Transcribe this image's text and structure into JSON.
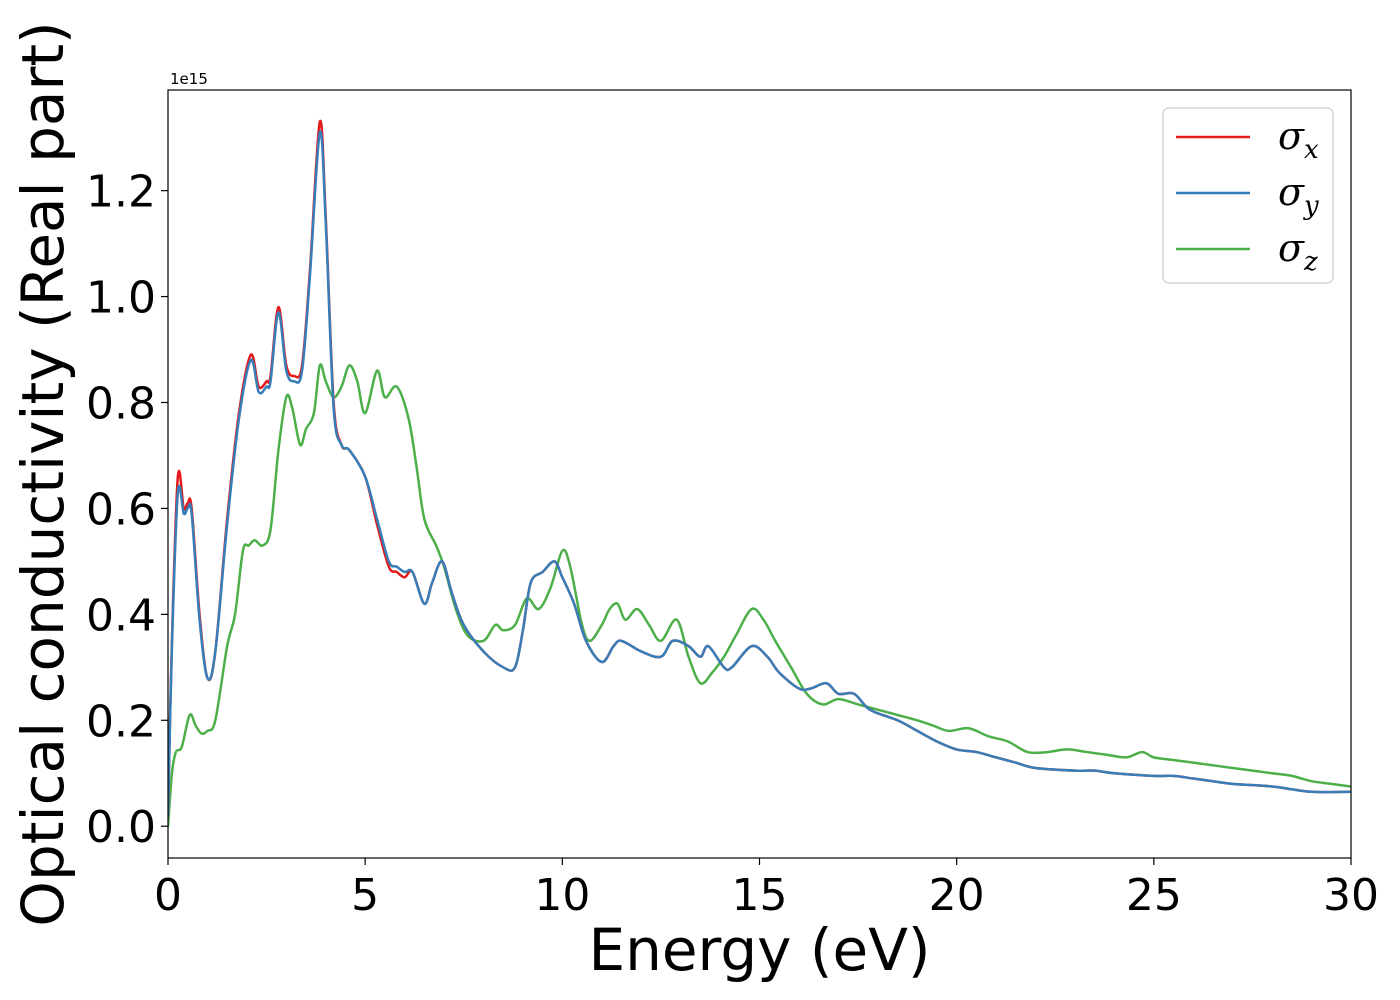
{
  "chart_data": {
    "type": "line",
    "title": "",
    "xlabel": "Energy (eV)",
    "ylabel": "Optical conductivity (Real part)",
    "y_offset_label": "1e15",
    "xlim": [
      0,
      30
    ],
    "ylim": [
      -0.06,
      1.39
    ],
    "x_ticks": [
      0,
      5,
      10,
      15,
      20,
      25,
      30
    ],
    "x_tick_labels": [
      "0",
      "5",
      "10",
      "15",
      "20",
      "25",
      "30"
    ],
    "y_ticks": [
      0.0,
      0.2,
      0.4,
      0.6,
      0.8,
      1.0,
      1.2
    ],
    "y_tick_labels": [
      "0.0",
      "0.2",
      "0.4",
      "0.6",
      "0.8",
      "1.0",
      "1.2"
    ],
    "grid": false,
    "legend_position": "top-right",
    "series": [
      {
        "name": "σx",
        "symbol": "σ",
        "subscript": "x",
        "color": "#e41a1c",
        "points": [
          [
            0,
            0.02
          ],
          [
            0.1,
            0.35
          ],
          [
            0.25,
            0.66
          ],
          [
            0.4,
            0.6
          ],
          [
            0.5,
            0.61
          ],
          [
            0.6,
            0.6
          ],
          [
            0.8,
            0.4
          ],
          [
            1.0,
            0.28
          ],
          [
            1.2,
            0.33
          ],
          [
            1.5,
            0.58
          ],
          [
            1.8,
            0.78
          ],
          [
            2.1,
            0.89
          ],
          [
            2.3,
            0.83
          ],
          [
            2.5,
            0.84
          ],
          [
            2.6,
            0.85
          ],
          [
            2.8,
            0.98
          ],
          [
            3.0,
            0.87
          ],
          [
            3.2,
            0.85
          ],
          [
            3.4,
            0.87
          ],
          [
            3.6,
            1.05
          ],
          [
            3.85,
            1.33
          ],
          [
            4.0,
            1.15
          ],
          [
            4.2,
            0.8
          ],
          [
            4.4,
            0.72
          ],
          [
            4.6,
            0.71
          ],
          [
            5.0,
            0.66
          ],
          [
            5.3,
            0.57
          ],
          [
            5.6,
            0.49
          ],
          [
            5.8,
            0.48
          ],
          [
            6.0,
            0.47
          ],
          [
            6.2,
            0.48
          ],
          [
            6.5,
            0.42
          ],
          [
            6.7,
            0.46
          ],
          [
            6.95,
            0.5
          ],
          [
            7.2,
            0.44
          ],
          [
            7.5,
            0.38
          ],
          [
            8.0,
            0.33
          ],
          [
            8.5,
            0.3
          ],
          [
            8.8,
            0.3
          ],
          [
            9.0,
            0.37
          ],
          [
            9.2,
            0.46
          ],
          [
            9.5,
            0.48
          ],
          [
            9.8,
            0.5
          ],
          [
            10.0,
            0.47
          ],
          [
            10.3,
            0.42
          ],
          [
            10.6,
            0.35
          ],
          [
            11.0,
            0.31
          ],
          [
            11.3,
            0.34
          ],
          [
            11.5,
            0.35
          ],
          [
            12.0,
            0.33
          ],
          [
            12.5,
            0.32
          ],
          [
            12.8,
            0.35
          ],
          [
            13.2,
            0.34
          ],
          [
            13.5,
            0.32
          ],
          [
            13.7,
            0.34
          ],
          [
            14.1,
            0.3
          ],
          [
            14.3,
            0.3
          ],
          [
            14.8,
            0.34
          ],
          [
            15.2,
            0.32
          ],
          [
            15.5,
            0.29
          ],
          [
            16.0,
            0.26
          ],
          [
            16.3,
            0.26
          ],
          [
            16.7,
            0.27
          ],
          [
            17.0,
            0.25
          ],
          [
            17.4,
            0.25
          ],
          [
            17.8,
            0.22
          ],
          [
            18.5,
            0.2
          ],
          [
            19.0,
            0.18
          ],
          [
            19.5,
            0.16
          ],
          [
            20.0,
            0.145
          ],
          [
            20.5,
            0.14
          ],
          [
            21.0,
            0.13
          ],
          [
            21.5,
            0.12
          ],
          [
            22.0,
            0.11
          ],
          [
            23.0,
            0.105
          ],
          [
            23.5,
            0.105
          ],
          [
            24.0,
            0.1
          ],
          [
            25.0,
            0.095
          ],
          [
            25.5,
            0.095
          ],
          [
            26.0,
            0.09
          ],
          [
            26.5,
            0.085
          ],
          [
            27.0,
            0.08
          ],
          [
            28.0,
            0.075
          ],
          [
            29.0,
            0.065
          ],
          [
            30.0,
            0.065
          ]
        ]
      },
      {
        "name": "σy",
        "symbol": "σ",
        "subscript": "y",
        "color": "#377eb8",
        "points": [
          [
            0,
            0.02
          ],
          [
            0.1,
            0.34
          ],
          [
            0.25,
            0.63
          ],
          [
            0.4,
            0.59
          ],
          [
            0.5,
            0.6
          ],
          [
            0.6,
            0.59
          ],
          [
            0.8,
            0.39
          ],
          [
            1.0,
            0.28
          ],
          [
            1.2,
            0.33
          ],
          [
            1.5,
            0.57
          ],
          [
            1.8,
            0.77
          ],
          [
            2.1,
            0.88
          ],
          [
            2.3,
            0.82
          ],
          [
            2.5,
            0.83
          ],
          [
            2.6,
            0.84
          ],
          [
            2.8,
            0.97
          ],
          [
            3.0,
            0.86
          ],
          [
            3.2,
            0.84
          ],
          [
            3.4,
            0.86
          ],
          [
            3.6,
            1.04
          ],
          [
            3.85,
            1.31
          ],
          [
            4.0,
            1.14
          ],
          [
            4.2,
            0.79
          ],
          [
            4.4,
            0.72
          ],
          [
            4.6,
            0.71
          ],
          [
            5.0,
            0.66
          ],
          [
            5.3,
            0.58
          ],
          [
            5.6,
            0.5
          ],
          [
            5.8,
            0.49
          ],
          [
            6.0,
            0.48
          ],
          [
            6.2,
            0.48
          ],
          [
            6.5,
            0.42
          ],
          [
            6.7,
            0.46
          ],
          [
            6.95,
            0.5
          ],
          [
            7.2,
            0.44
          ],
          [
            7.5,
            0.38
          ],
          [
            8.0,
            0.33
          ],
          [
            8.5,
            0.3
          ],
          [
            8.8,
            0.3
          ],
          [
            9.0,
            0.37
          ],
          [
            9.2,
            0.46
          ],
          [
            9.5,
            0.48
          ],
          [
            9.8,
            0.5
          ],
          [
            10.0,
            0.47
          ],
          [
            10.3,
            0.42
          ],
          [
            10.6,
            0.35
          ],
          [
            11.0,
            0.31
          ],
          [
            11.3,
            0.34
          ],
          [
            11.5,
            0.35
          ],
          [
            12.0,
            0.33
          ],
          [
            12.5,
            0.32
          ],
          [
            12.8,
            0.35
          ],
          [
            13.2,
            0.34
          ],
          [
            13.5,
            0.32
          ],
          [
            13.7,
            0.34
          ],
          [
            14.1,
            0.3
          ],
          [
            14.3,
            0.3
          ],
          [
            14.8,
            0.34
          ],
          [
            15.2,
            0.32
          ],
          [
            15.5,
            0.29
          ],
          [
            16.0,
            0.26
          ],
          [
            16.3,
            0.26
          ],
          [
            16.7,
            0.27
          ],
          [
            17.0,
            0.25
          ],
          [
            17.4,
            0.25
          ],
          [
            17.8,
            0.22
          ],
          [
            18.5,
            0.2
          ],
          [
            19.0,
            0.18
          ],
          [
            19.5,
            0.16
          ],
          [
            20.0,
            0.145
          ],
          [
            20.5,
            0.14
          ],
          [
            21.0,
            0.13
          ],
          [
            21.5,
            0.12
          ],
          [
            22.0,
            0.11
          ],
          [
            23.0,
            0.105
          ],
          [
            23.5,
            0.105
          ],
          [
            24.0,
            0.1
          ],
          [
            25.0,
            0.095
          ],
          [
            25.5,
            0.095
          ],
          [
            26.0,
            0.09
          ],
          [
            26.5,
            0.085
          ],
          [
            27.0,
            0.08
          ],
          [
            28.0,
            0.075
          ],
          [
            29.0,
            0.065
          ],
          [
            30.0,
            0.065
          ]
        ]
      },
      {
        "name": "σz",
        "symbol": "σ",
        "subscript": "z",
        "color": "#4daf4a",
        "points": [
          [
            0,
            0.0
          ],
          [
            0.1,
            0.1
          ],
          [
            0.2,
            0.14
          ],
          [
            0.35,
            0.15
          ],
          [
            0.55,
            0.21
          ],
          [
            0.7,
            0.19
          ],
          [
            0.85,
            0.175
          ],
          [
            1.0,
            0.18
          ],
          [
            1.2,
            0.2
          ],
          [
            1.5,
            0.34
          ],
          [
            1.7,
            0.4
          ],
          [
            1.9,
            0.52
          ],
          [
            2.05,
            0.53
          ],
          [
            2.2,
            0.54
          ],
          [
            2.4,
            0.53
          ],
          [
            2.6,
            0.56
          ],
          [
            2.8,
            0.71
          ],
          [
            3.0,
            0.81
          ],
          [
            3.15,
            0.79
          ],
          [
            3.35,
            0.72
          ],
          [
            3.5,
            0.75
          ],
          [
            3.7,
            0.78
          ],
          [
            3.85,
            0.87
          ],
          [
            4.0,
            0.84
          ],
          [
            4.2,
            0.81
          ],
          [
            4.4,
            0.83
          ],
          [
            4.6,
            0.87
          ],
          [
            4.8,
            0.84
          ],
          [
            5.0,
            0.78
          ],
          [
            5.3,
            0.86
          ],
          [
            5.5,
            0.81
          ],
          [
            5.8,
            0.83
          ],
          [
            6.1,
            0.77
          ],
          [
            6.3,
            0.68
          ],
          [
            6.5,
            0.58
          ],
          [
            6.8,
            0.53
          ],
          [
            7.0,
            0.49
          ],
          [
            7.3,
            0.41
          ],
          [
            7.6,
            0.36
          ],
          [
            8.0,
            0.35
          ],
          [
            8.3,
            0.38
          ],
          [
            8.5,
            0.37
          ],
          [
            8.8,
            0.38
          ],
          [
            9.1,
            0.43
          ],
          [
            9.4,
            0.41
          ],
          [
            9.7,
            0.45
          ],
          [
            10.0,
            0.52
          ],
          [
            10.2,
            0.49
          ],
          [
            10.5,
            0.38
          ],
          [
            10.7,
            0.35
          ],
          [
            11.0,
            0.38
          ],
          [
            11.2,
            0.41
          ],
          [
            11.4,
            0.42
          ],
          [
            11.6,
            0.39
          ],
          [
            11.9,
            0.41
          ],
          [
            12.2,
            0.38
          ],
          [
            12.5,
            0.35
          ],
          [
            12.9,
            0.39
          ],
          [
            13.2,
            0.32
          ],
          [
            13.5,
            0.27
          ],
          [
            13.8,
            0.29
          ],
          [
            14.1,
            0.32
          ],
          [
            14.4,
            0.36
          ],
          [
            14.8,
            0.41
          ],
          [
            15.1,
            0.39
          ],
          [
            15.4,
            0.35
          ],
          [
            15.8,
            0.3
          ],
          [
            16.2,
            0.25
          ],
          [
            16.6,
            0.23
          ],
          [
            17.0,
            0.24
          ],
          [
            17.5,
            0.23
          ],
          [
            18.0,
            0.22
          ],
          [
            18.5,
            0.21
          ],
          [
            19.0,
            0.2
          ],
          [
            19.4,
            0.19
          ],
          [
            19.8,
            0.18
          ],
          [
            20.3,
            0.185
          ],
          [
            20.8,
            0.17
          ],
          [
            21.3,
            0.16
          ],
          [
            21.8,
            0.14
          ],
          [
            22.3,
            0.14
          ],
          [
            22.8,
            0.145
          ],
          [
            23.3,
            0.14
          ],
          [
            23.8,
            0.135
          ],
          [
            24.3,
            0.13
          ],
          [
            24.7,
            0.14
          ],
          [
            25.0,
            0.13
          ],
          [
            25.5,
            0.125
          ],
          [
            26.0,
            0.12
          ],
          [
            26.5,
            0.115
          ],
          [
            27.0,
            0.11
          ],
          [
            27.5,
            0.105
          ],
          [
            28.0,
            0.1
          ],
          [
            28.5,
            0.095
          ],
          [
            29.0,
            0.085
          ],
          [
            29.5,
            0.08
          ],
          [
            30.0,
            0.075
          ]
        ]
      }
    ]
  }
}
